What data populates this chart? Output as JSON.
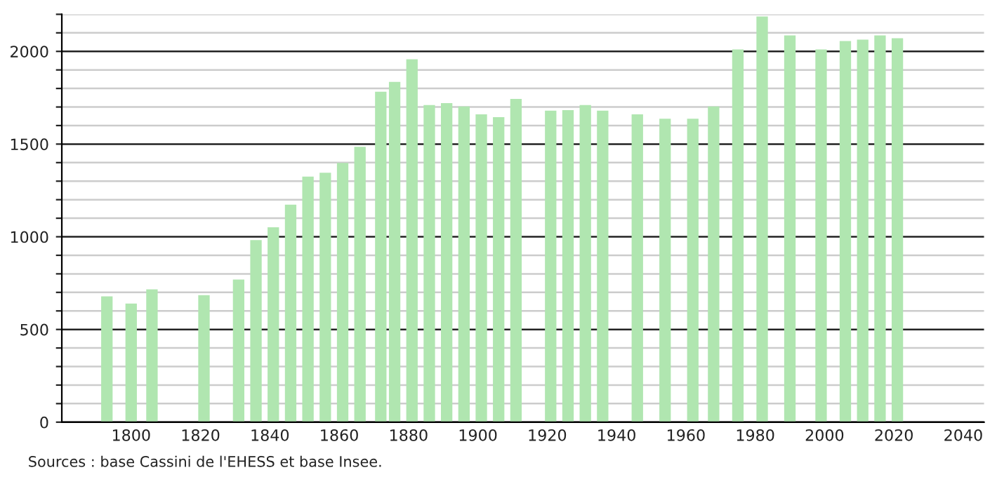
{
  "chart_data": {
    "type": "bar",
    "x": [
      1793,
      1800,
      1806,
      1821,
      1831,
      1836,
      1841,
      1846,
      1851,
      1856,
      1861,
      1866,
      1872,
      1876,
      1881,
      1886,
      1891,
      1896,
      1901,
      1906,
      1911,
      1921,
      1926,
      1931,
      1936,
      1946,
      1954,
      1962,
      1968,
      1975,
      1982,
      1990,
      1999,
      2006,
      2011,
      2016,
      2021
    ],
    "values": [
      678,
      640,
      716,
      685,
      769,
      982,
      1051,
      1173,
      1325,
      1345,
      1398,
      1485,
      1782,
      1835,
      1957,
      1711,
      1721,
      1703,
      1660,
      1645,
      1744,
      1680,
      1683,
      1711,
      1680,
      1660,
      1637,
      1637,
      1703,
      2010,
      2188,
      2086,
      2010,
      2056,
      2063,
      2086,
      2071
    ],
    "color": "#b0e6b0",
    "xlim": [
      1780,
      2046
    ],
    "xticks": [
      1800,
      1820,
      1840,
      1860,
      1880,
      1900,
      1920,
      1940,
      1960,
      1980,
      2000,
      2020,
      2040
    ],
    "ylim": [
      0,
      2200
    ],
    "yticks": [
      0,
      {
        "value": 100,
        "label": null
      },
      {
        "value": 200,
        "label": null
      },
      {
        "value": 300,
        "label": null
      },
      {
        "value": 400,
        "label": null
      },
      500,
      {
        "value": 600,
        "label": null
      },
      {
        "value": 700,
        "label": null
      },
      {
        "value": 800,
        "label": null
      },
      {
        "value": 900,
        "label": null
      },
      1000,
      {
        "value": 1100,
        "label": null
      },
      {
        "value": 1200,
        "label": null
      },
      {
        "value": 1300,
        "label": null
      },
      {
        "value": 1400,
        "label": null
      },
      1500,
      {
        "value": 1600,
        "label": null
      },
      {
        "value": 1700,
        "label": null
      },
      {
        "value": 1800,
        "label": null
      },
      {
        "value": 1900,
        "label": null
      },
      2000,
      {
        "value": 2100,
        "label": null
      },
      {
        "value": 2200,
        "label": null
      }
    ],
    "grid": "y",
    "annotations": [
      "Sources : base Cassini de l'EHESS et base Insee."
    ]
  }
}
